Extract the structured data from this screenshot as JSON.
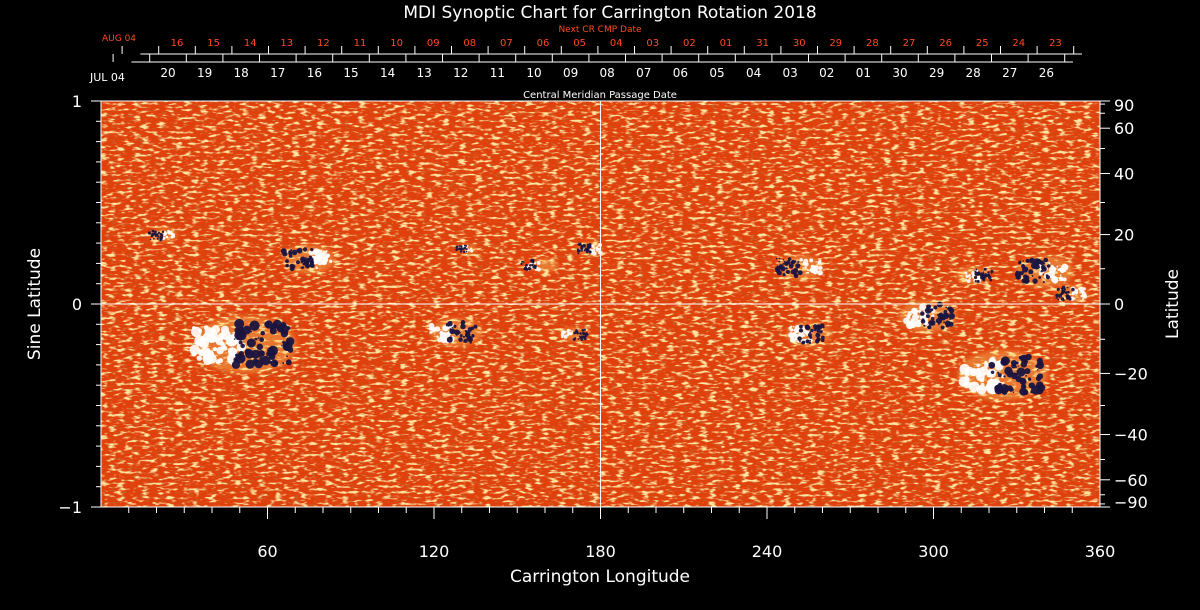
{
  "title": "MDI Synoptic Chart for Carrington Rotation 2018",
  "colors": {
    "background": "#000000",
    "axes": "#ffffff",
    "map_base": "#e0400c",
    "map_dark": "#b82a06",
    "map_bright": "#ffd870",
    "positive_polarity": "#ffffff",
    "negative_polarity": "#1a1440",
    "next_cr_labels": "#ff4a20"
  },
  "next_cr": {
    "title": "Next CR CMP Date",
    "month_label": "AUG 04",
    "day_labels": [
      "16",
      "15",
      "14",
      "13",
      "12",
      "11",
      "10",
      "09",
      "08",
      "07",
      "06",
      "05",
      "04",
      "03",
      "02",
      "01",
      "31",
      "30",
      "29",
      "28",
      "27",
      "26",
      "25",
      "24",
      "23"
    ]
  },
  "cmp": {
    "title": "Central Meridian Passage Date",
    "month_label": "JUL 04",
    "day_labels": [
      "20",
      "19",
      "18",
      "17",
      "16",
      "15",
      "14",
      "13",
      "12",
      "11",
      "10",
      "09",
      "08",
      "07",
      "06",
      "05",
      "04",
      "03",
      "02",
      "01",
      "30",
      "29",
      "28",
      "27",
      "26"
    ]
  },
  "chart_data": {
    "type": "heatmap",
    "title": "MDI Synoptic Chart for Carrington Rotation 2018",
    "xlabel": "Carrington Longitude",
    "ylabel_left": "Sine Latitude",
    "ylabel_right": "Latitude",
    "xlim": [
      0,
      360
    ],
    "ylim": [
      -1,
      1
    ],
    "x_ticks": [
      60,
      120,
      180,
      240,
      300,
      360
    ],
    "x_tick_labels": [
      "60",
      "120",
      "180",
      "240",
      "300",
      "360"
    ],
    "y_ticks_left": [
      1,
      0,
      -1
    ],
    "y_tick_labels_left": [
      "1",
      "0",
      "−1"
    ],
    "y_ticks_right_deg": [
      90,
      60,
      40,
      20,
      0,
      -20,
      -40,
      -60,
      -90
    ],
    "y_tick_labels_right": [
      "90",
      "60",
      "40",
      "20",
      "0",
      "−20",
      "−40",
      "−60",
      "−90"
    ],
    "reference_lines": {
      "longitude": 180,
      "sine_latitude": 0
    },
    "active_regions": [
      {
        "lon": 23,
        "sinlat": 0.34,
        "pos_lon": 24,
        "neg_lon": 20,
        "spread": 4
      },
      {
        "lon": 75,
        "sinlat": 0.22,
        "pos_lon": 79,
        "neg_lon": 71,
        "spread": 8
      },
      {
        "lon": 132,
        "sinlat": 0.27,
        "pos_lon": 132,
        "neg_lon": 130,
        "spread": 3
      },
      {
        "lon": 160,
        "sinlat": 0.19,
        "pos_lon": 156,
        "neg_lon": 154,
        "spread": 4
      },
      {
        "lon": 176,
        "sinlat": 0.27,
        "pos_lon": 178,
        "neg_lon": 174,
        "spread": 4
      },
      {
        "lon": 252,
        "sinlat": 0.18,
        "pos_lon": 256,
        "neg_lon": 248,
        "spread": 7
      },
      {
        "lon": 314,
        "sinlat": 0.14,
        "pos_lon": 314,
        "neg_lon": 318,
        "spread": 5
      },
      {
        "lon": 340,
        "sinlat": 0.16,
        "pos_lon": 343,
        "neg_lon": 336,
        "spread": 9
      },
      {
        "lon": 350,
        "sinlat": 0.05,
        "pos_lon": 352,
        "neg_lon": 347,
        "spread": 5
      },
      {
        "lon": 52,
        "sinlat": -0.2,
        "pos_lon": 42,
        "neg_lon": 58,
        "spread": 16
      },
      {
        "lon": 128,
        "sinlat": -0.14,
        "pos_lon": 123,
        "neg_lon": 130,
        "spread": 8
      },
      {
        "lon": 170,
        "sinlat": -0.15,
        "pos_lon": 168,
        "neg_lon": 173,
        "spread": 4
      },
      {
        "lon": 255,
        "sinlat": -0.15,
        "pos_lon": 252,
        "neg_lon": 256,
        "spread": 7
      },
      {
        "lon": 298,
        "sinlat": -0.06,
        "pos_lon": 295,
        "neg_lon": 301,
        "spread": 9
      },
      {
        "lon": 325,
        "sinlat": -0.35,
        "pos_lon": 318,
        "neg_lon": 330,
        "spread": 14
      }
    ]
  }
}
